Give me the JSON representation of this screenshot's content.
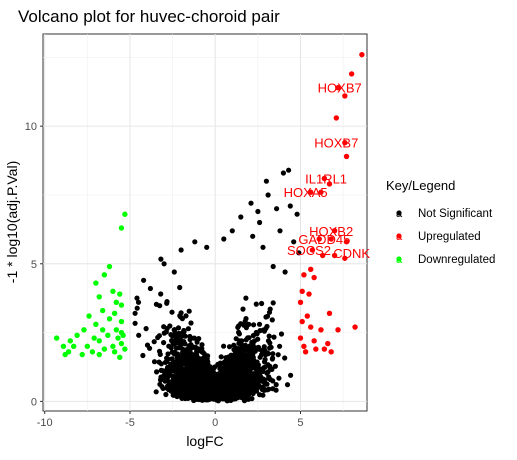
{
  "chart_data": {
    "type": "scatter",
    "title": "Volcano plot for huvec-choroid pair",
    "xlabel": "logFC",
    "ylabel": "-1 * log10(adj.P.Val)",
    "xlim": [
      -10.1,
      8.9
    ],
    "ylim": [
      -0.35,
      13.35
    ],
    "x_ticks": [
      -10,
      -5,
      0,
      5
    ],
    "y_ticks": [
      0,
      5,
      10
    ],
    "grid": true,
    "legend": {
      "title": "Key/Legend",
      "position": "right",
      "entries": [
        {
          "label": "Not Significant",
          "color": "#000000",
          "symbol": "a"
        },
        {
          "label": "Upregulated",
          "color": "#ff0000",
          "symbol": "a"
        },
        {
          "label": "Downregulated",
          "color": "#00ff00",
          "symbol": "a"
        }
      ]
    },
    "series": [
      {
        "name": "Downregulated",
        "color": "#00ff00",
        "points": [
          [
            -5.3,
            6.8
          ],
          [
            -5.5,
            6.3
          ],
          [
            -6.2,
            4.9
          ],
          [
            -6.5,
            4.6
          ],
          [
            -7.0,
            4.3
          ],
          [
            -6.0,
            4.0
          ],
          [
            -5.6,
            3.9
          ],
          [
            -6.8,
            3.8
          ],
          [
            -5.8,
            3.6
          ],
          [
            -5.5,
            3.5
          ],
          [
            -6.6,
            3.3
          ],
          [
            -5.9,
            3.2
          ],
          [
            -7.4,
            3.1
          ],
          [
            -6.2,
            3.0
          ],
          [
            -5.5,
            2.9
          ],
          [
            -7.0,
            2.8
          ],
          [
            -6.6,
            2.6
          ],
          [
            -5.8,
            2.6
          ],
          [
            -7.7,
            2.6
          ],
          [
            -5.5,
            2.5
          ],
          [
            -8.1,
            2.4
          ],
          [
            -6.3,
            2.4
          ],
          [
            -7.1,
            2.3
          ],
          [
            -5.7,
            2.3
          ],
          [
            -9.3,
            2.3
          ],
          [
            -8.5,
            2.2
          ],
          [
            -6.8,
            2.2
          ],
          [
            -5.5,
            2.1
          ],
          [
            -7.5,
            2.0
          ],
          [
            -6.0,
            2.0
          ],
          [
            -8.9,
            2.0
          ],
          [
            -6.5,
            1.9
          ],
          [
            -5.3,
            1.9
          ],
          [
            -7.2,
            1.8
          ],
          [
            -8.6,
            1.8
          ],
          [
            -5.9,
            1.8
          ],
          [
            -6.8,
            1.7
          ],
          [
            -7.8,
            1.7
          ],
          [
            -5.6,
            1.6
          ],
          [
            -8.8,
            1.7
          ],
          [
            -8.3,
            2.0
          ],
          [
            -5.4,
            2.4
          ]
        ]
      },
      {
        "name": "Upregulated",
        "color": "#ff0000",
        "points": [
          [
            8.6,
            12.6
          ],
          [
            8.0,
            11.9
          ],
          [
            7.2,
            11.4
          ],
          [
            7.6,
            11.1
          ],
          [
            7.1,
            10.3
          ],
          [
            7.6,
            9.4
          ],
          [
            7.7,
            8.9
          ],
          [
            6.4,
            8.1
          ],
          [
            6.7,
            7.9
          ],
          [
            5.6,
            7.6
          ],
          [
            6.2,
            7.6
          ],
          [
            7.0,
            6.2
          ],
          [
            6.1,
            5.9
          ],
          [
            6.8,
            5.9
          ],
          [
            7.7,
            5.8
          ],
          [
            5.7,
            5.5
          ],
          [
            6.3,
            5.3
          ],
          [
            7.0,
            5.3
          ],
          [
            7.6,
            5.2
          ],
          [
            5.6,
            4.8
          ],
          [
            5.2,
            4.6
          ],
          [
            5.8,
            4.5
          ],
          [
            5.1,
            4.0
          ],
          [
            5.5,
            3.9
          ],
          [
            5.0,
            3.6
          ],
          [
            6.7,
            3.2
          ],
          [
            5.4,
            3.1
          ],
          [
            5.1,
            2.9
          ],
          [
            8.2,
            2.7
          ],
          [
            5.6,
            2.7
          ],
          [
            6.2,
            2.6
          ],
          [
            7.2,
            2.6
          ],
          [
            5.0,
            2.3
          ],
          [
            5.8,
            2.2
          ],
          [
            6.6,
            2.1
          ],
          [
            5.2,
            2.0
          ],
          [
            5.9,
            1.9
          ],
          [
            6.4,
            1.9
          ],
          [
            5.3,
            1.8
          ],
          [
            6.8,
            1.8
          ]
        ]
      }
    ],
    "annotations": [
      {
        "text": "HOXB7",
        "x": 7.3,
        "y": 11.4,
        "color": "#ff0000"
      },
      {
        "text": "HOXB7",
        "x": 7.1,
        "y": 9.4,
        "color": "#ff0000"
      },
      {
        "text": "IL1RL1",
        "x": 6.5,
        "y": 8.1,
        "color": "#ff0000"
      },
      {
        "text": "HOXA5",
        "x": 5.3,
        "y": 7.6,
        "color": "#ff0000"
      },
      {
        "text": "HOXB2",
        "x": 6.8,
        "y": 6.2,
        "color": "#ff0000"
      },
      {
        "text": "GADD45",
        "x": 6.4,
        "y": 5.9,
        "color": "#ff0000"
      },
      {
        "text": "SOCS2",
        "x": 5.5,
        "y": 5.5,
        "color": "#ff0000"
      },
      {
        "text": "CDNK",
        "x": 8.0,
        "y": 5.4,
        "color": "#ff0000"
      }
    ]
  }
}
